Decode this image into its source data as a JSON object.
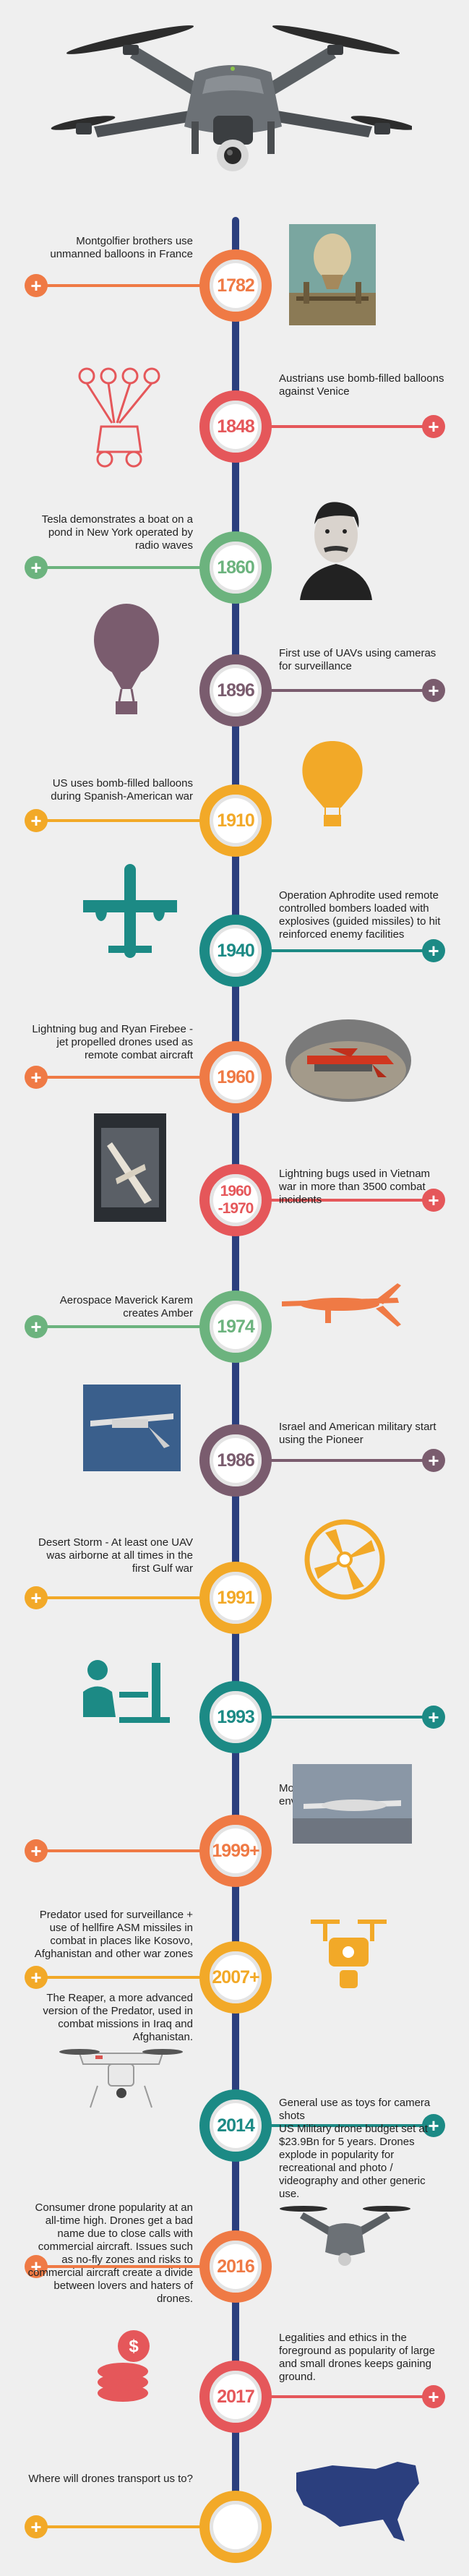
{
  "colors": {
    "orange": "#ef7a45",
    "red": "#e5575a",
    "teal": "#1c8a85",
    "green": "#6cb37e",
    "purple": "#7a5c6e",
    "yellow": "#f2a928",
    "navy": "#2b3f7e"
  },
  "events": [
    {
      "year": "1782",
      "text": "Montgolfier brothers use unmanned balloons in France",
      "side": "left",
      "color": "#ef7a45",
      "icon": "balloon-launch-painting-icon"
    },
    {
      "year": "1848",
      "text": "Austrians use bomb-filled balloons against Venice",
      "side": "right",
      "color": "#e5575a",
      "icon": "balloon-cart-icon"
    },
    {
      "year": "1860",
      "text": "Tesla demonstrates a boat on a pond in New York operated by radio waves",
      "side": "left",
      "color": "#6cb37e",
      "icon": "tesla-portrait-icon"
    },
    {
      "year": "1896",
      "text": "First use of UAVs using cameras for surveillance",
      "side": "right",
      "color": "#7a5c6e",
      "icon": "balloon-icon"
    },
    {
      "year": "1910",
      "text": "US uses bomb-filled balloons during Spanish-American war",
      "side": "left",
      "color": "#f2a928",
      "icon": "hot-air-balloon-icon"
    },
    {
      "year": "1940",
      "text": "Operation Aphrodite used remote controlled bombers loaded with explosives (guided missiles) to hit reinforced enemy facilities",
      "side": "right",
      "color": "#1c8a85",
      "icon": "bomber-plane-icon"
    },
    {
      "year": "1960",
      "text": "Lightning bug and Ryan Firebee - jet propelled drones used as remote combat aircraft",
      "side": "left",
      "color": "#ef7a45",
      "icon": "firebee-drone-photo-icon"
    },
    {
      "year": "1960\n-1970",
      "text": "Lightning bugs used in Vietnam war in more than 3500 combat incidents",
      "side": "right",
      "color": "#e5575a",
      "icon": "lightning-bug-photo-icon"
    },
    {
      "year": "1974",
      "text": "Aerospace Maverick Karem creates Amber",
      "side": "left",
      "color": "#6cb37e",
      "icon": "predator-drone-icon"
    },
    {
      "year": "1986",
      "text": "Israel and American military start using the Pioneer",
      "side": "right",
      "color": "#7a5c6e",
      "icon": "pioneer-drone-photo-icon"
    },
    {
      "year": "1991",
      "text": "Desert Storm - At least one UAV was airborne at all times in the first Gulf war",
      "side": "left",
      "color": "#f2a928",
      "icon": "propeller-icon"
    },
    {
      "year": "1993",
      "text": "Monitoring of climate and environment using drones",
      "side": "right",
      "color": "#1c8a85",
      "icon": "computer-operator-icon"
    },
    {
      "year": "1999+",
      "text": "Predator used for surveillance + use of hellfire ASM missiles in combat in places like Kosovo, Afghanistan and other war zones",
      "side": "left",
      "color": "#ef7a45",
      "icon": "predator-photo-icon"
    },
    {
      "year": "2007+",
      "text": "The Reaper, a more advanced version of the Predator, used in combat missions in Iraq and Afghanistan.",
      "side": "left",
      "color": "#f2a928",
      "icon": "quadcopter-icon"
    },
    {
      "year": "2014",
      "text": "General use as toys for camera shots\nUS Military drone budget set at $23.9Bn for 5 years. Drones explode in popularity for recreational and photo / videography and other generic use.",
      "side": "right",
      "color": "#1c8a85",
      "icon": "white-quadcopter-icon"
    },
    {
      "year": "2016",
      "text": "Consumer drone popularity at an all-time high. Drones get a bad name due to close calls with commercial aircraft. Issues such as no-fly zones and risks to commercial aircraft create a divide between lovers and haters of drones.",
      "side": "left",
      "color": "#ef7a45",
      "icon": "mavic-drone-icon"
    },
    {
      "year": "2017",
      "text": "Legalities and ethics in the foreground as popularity of large and small drones keeps gaining ground.",
      "side": "right",
      "color": "#e5575a",
      "icon": "coins-icon"
    },
    {
      "year": "",
      "text": "Where will drones transport us to?",
      "side": "left",
      "color": "#f2a928",
      "icon": "usa-map-icon"
    }
  ]
}
